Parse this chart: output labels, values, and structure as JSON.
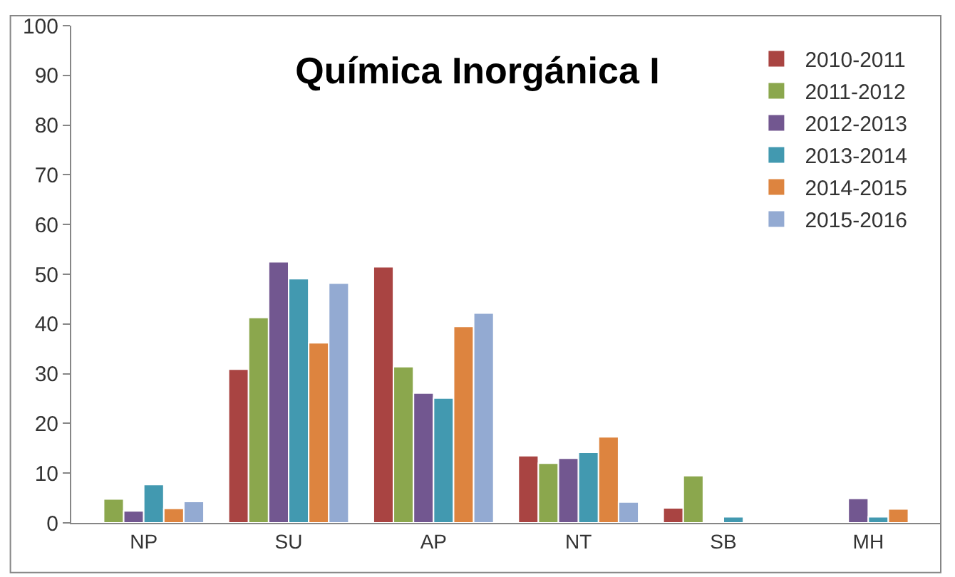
{
  "chart_data": {
    "type": "bar",
    "title": "Química Inorgánica I",
    "categories": [
      "NP",
      "SU",
      "AP",
      "NT",
      "SB",
      "MH"
    ],
    "series": [
      {
        "name": "2010-2011",
        "color": "#a94442",
        "values": [
          null,
          30.9,
          51.5,
          13.5,
          3,
          null
        ]
      },
      {
        "name": "2011-2012",
        "color": "#8ba74d",
        "values": [
          4.8,
          41.3,
          31.4,
          12,
          9.5,
          null
        ]
      },
      {
        "name": "2012-2013",
        "color": "#725790",
        "values": [
          2.4,
          52.5,
          26.1,
          13,
          null,
          4.9
        ]
      },
      {
        "name": "2013-2014",
        "color": "#4299b0",
        "values": [
          7.7,
          49.1,
          25.1,
          14.2,
          1.2,
          1.2
        ]
      },
      {
        "name": "2014-2015",
        "color": "#dd843f",
        "values": [
          2.9,
          36.2,
          39.5,
          17.3,
          null,
          2.8
        ]
      },
      {
        "name": "2015-2016",
        "color": "#93aad2",
        "values": [
          4.3,
          48.2,
          42.2,
          4.2,
          null,
          null
        ]
      }
    ],
    "ylim": [
      0,
      100
    ],
    "yticks": [
      0,
      10,
      20,
      30,
      40,
      50,
      60,
      70,
      80,
      90,
      100
    ],
    "legend": "top right"
  }
}
